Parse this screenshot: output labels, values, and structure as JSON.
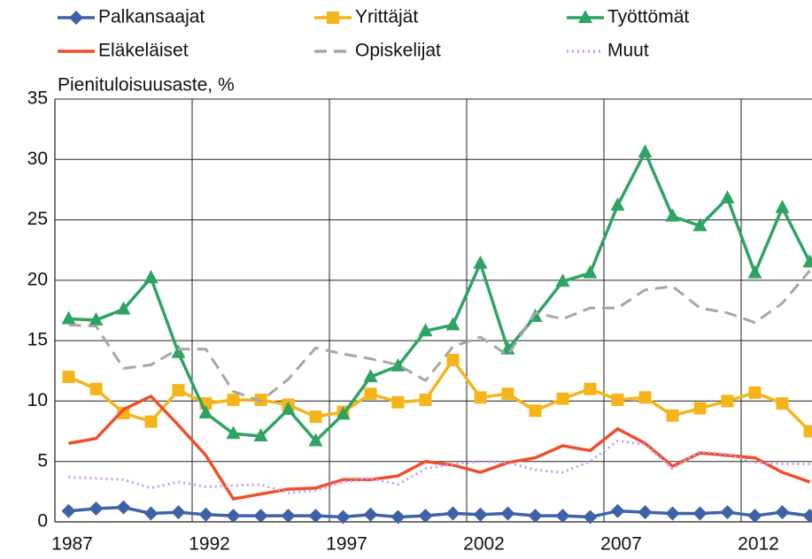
{
  "chart_data": {
    "type": "line",
    "y_label": "Pienituloisuusaste, %",
    "categories": [
      "1987",
      null,
      null,
      null,
      null,
      "1992",
      null,
      null,
      null,
      null,
      "1997",
      null,
      null,
      null,
      null,
      "2002",
      null,
      null,
      null,
      null,
      "2007",
      null,
      null,
      null,
      null,
      "2012",
      null,
      null
    ],
    "ylim": [
      0,
      35
    ],
    "yticks": [
      0,
      5,
      10,
      15,
      20,
      25,
      30,
      35
    ],
    "grid": true,
    "series": [
      {
        "name": "Palkansaajat",
        "color": "#3e62a8",
        "style": "solid",
        "marker": "diamond",
        "values": [
          0.9,
          1.1,
          1.2,
          0.7,
          0.8,
          0.6,
          0.5,
          0.5,
          0.5,
          0.5,
          0.4,
          0.6,
          0.4,
          0.5,
          0.7,
          0.6,
          0.7,
          0.5,
          0.5,
          0.4,
          0.9,
          0.8,
          0.7,
          0.7,
          0.8,
          0.5,
          0.8,
          0.5
        ]
      },
      {
        "name": "Yrittäjät",
        "color": "#f5b41a",
        "style": "solid",
        "marker": "square",
        "values": [
          12.0,
          11.0,
          9.0,
          8.3,
          10.9,
          9.8,
          10.1,
          10.1,
          9.7,
          8.7,
          9.1,
          10.6,
          9.9,
          10.1,
          13.4,
          10.3,
          10.6,
          9.2,
          10.2,
          11.0,
          10.1,
          10.3,
          8.8,
          9.4,
          10.0,
          10.7,
          9.8,
          7.5
        ]
      },
      {
        "name": "Työttömät",
        "color": "#2ea363",
        "style": "solid",
        "marker": "triangle",
        "values": [
          16.8,
          16.7,
          17.6,
          20.2,
          14.0,
          9.0,
          7.3,
          7.1,
          9.3,
          6.7,
          8.9,
          12.0,
          12.9,
          15.8,
          16.3,
          21.4,
          14.3,
          17.0,
          19.9,
          20.6,
          26.2,
          30.6,
          25.3,
          24.5,
          26.8,
          20.6,
          26.0,
          21.5
        ]
      },
      {
        "name": "Eläkeläiset",
        "color": "#f04e2b",
        "style": "solid",
        "marker": "none",
        "values": [
          6.5,
          6.9,
          9.3,
          10.4,
          8.0,
          5.5,
          1.9,
          2.3,
          2.7,
          2.8,
          3.5,
          3.5,
          3.8,
          5.0,
          4.7,
          4.1,
          4.9,
          5.3,
          6.3,
          5.9,
          7.7,
          6.5,
          4.6,
          5.7,
          5.5,
          5.3,
          4.1,
          3.3
        ]
      },
      {
        "name": "Opiskelijat",
        "color": "#a6a6a6",
        "style": "dashed",
        "marker": "none",
        "values": [
          16.3,
          16.2,
          12.7,
          13.0,
          14.3,
          14.3,
          10.8,
          10.0,
          11.8,
          14.4,
          13.9,
          13.5,
          13.0,
          11.7,
          14.5,
          15.3,
          13.8,
          17.3,
          16.8,
          17.7,
          17.7,
          19.2,
          19.5,
          17.7,
          17.3,
          16.5,
          18.1,
          20.8
        ]
      },
      {
        "name": "Muut",
        "color": "#cc99ee",
        "style": "dotted",
        "marker": "none",
        "values": [
          3.7,
          3.6,
          3.5,
          2.8,
          3.3,
          2.9,
          3.0,
          3.1,
          2.4,
          2.6,
          3.3,
          3.6,
          3.1,
          4.4,
          4.8,
          5.0,
          4.9,
          4.3,
          4.1,
          5.0,
          6.7,
          6.4,
          4.4,
          5.8,
          5.6,
          4.9,
          4.8,
          4.8
        ]
      }
    ]
  }
}
